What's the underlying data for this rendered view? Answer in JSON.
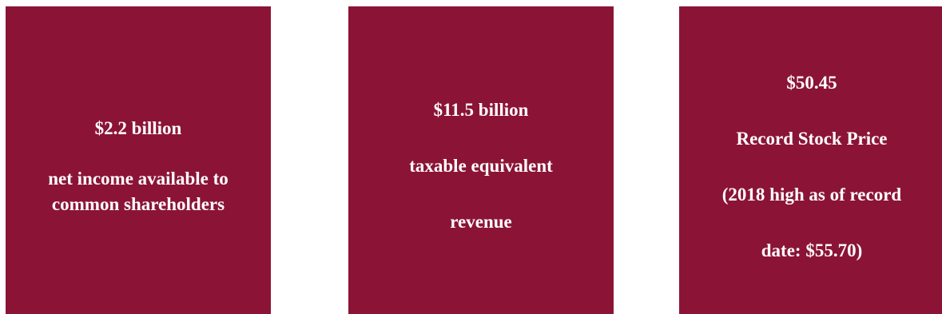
{
  "panels": [
    {
      "value": "$2.2 billion",
      "description_lines": [
        "net income available to",
        "common shareholders"
      ]
    },
    {
      "value": "$11.5 billion",
      "description_lines": [
        "taxable equivalent",
        "revenue"
      ]
    },
    {
      "value": "$50.45",
      "description_lines": [
        "Record Stock Price",
        "(2018 high as of record",
        "date: $55.70)"
      ]
    }
  ],
  "colors": {
    "panel_background": "#8b1436",
    "text": "#ffffff"
  }
}
